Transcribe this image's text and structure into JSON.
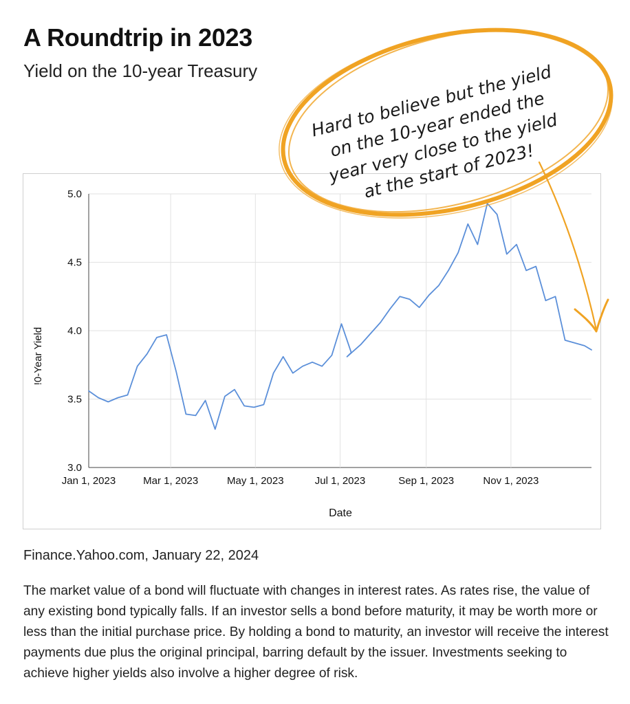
{
  "header": {
    "title": "A Roundtrip in 2023",
    "subtitle": "Yield on the 10-year Treasury"
  },
  "callout": {
    "lines": [
      "Hard to believe but the yield",
      "on the 10-year ended the",
      "year very close to the yield",
      "at the start of 2023!"
    ],
    "color": "#f0a323"
  },
  "source": "Finance.Yahoo.com, January 22, 2024",
  "disclaimer": "The market value of a bond will fluctuate with changes in interest rates. As rates rise, the value of any existing bond typically falls. If an investor sells a bond before maturity, it may be worth more or less than the initial purchase price. By holding a bond to maturity, an investor will receive the interest payments due plus the original principal, barring default by the issuer. Investments seeking to achieve higher yields also involve a higher degree of risk.",
  "chart_data": {
    "type": "line",
    "xlabel": "Date",
    "ylabel": "!0-Year Yield",
    "ylim": [
      3.0,
      5.0
    ],
    "yticks": [
      "3.0",
      "3.5",
      "4.0",
      "4.5",
      "5.0"
    ],
    "yticks_values": [
      3.0,
      3.5,
      4.0,
      4.5,
      5.0
    ],
    "xticks": [
      "Jan 1, 2023",
      "Mar 1, 2023",
      "May 1, 2023",
      "Jul 1, 2023",
      "Sep 1, 2023",
      "Nov 1, 2023"
    ],
    "xticks_dates": [
      "2023-01-01",
      "2023-03-01",
      "2023-05-01",
      "2023-07-01",
      "2023-09-01",
      "2023-11-01"
    ],
    "xlim": [
      "2023-01-01",
      "2023-12-29"
    ],
    "grid": true,
    "line_color": "#5b8fd9",
    "series": [
      {
        "x": [
          "2023-01-01",
          "2023-01-08",
          "2023-01-15",
          "2023-01-22",
          "2023-01-29",
          "2023-02-05",
          "2023-02-12",
          "2023-02-19",
          "2023-02-26",
          "2023-03-05",
          "2023-03-12",
          "2023-03-19",
          "2023-03-26",
          "2023-04-02",
          "2023-04-09",
          "2023-04-16",
          "2023-04-23",
          "2023-04-30",
          "2023-05-07",
          "2023-05-14",
          "2023-05-21",
          "2023-05-28",
          "2023-06-04",
          "2023-06-11",
          "2023-06-18",
          "2023-06-25",
          "2023-07-02",
          "2023-07-09",
          "2023-07-06",
          "2023-07-16",
          "2023-07-23",
          "2023-07-30",
          "2023-08-06",
          "2023-08-13",
          "2023-08-20",
          "2023-08-27",
          "2023-09-03",
          "2023-09-10",
          "2023-09-17",
          "2023-09-24",
          "2023-10-01",
          "2023-10-08",
          "2023-10-15",
          "2023-10-22",
          "2023-10-29",
          "2023-11-05",
          "2023-11-12",
          "2023-11-19",
          "2023-11-26",
          "2023-12-03",
          "2023-12-10",
          "2023-12-17",
          "2023-12-24",
          "2023-12-29"
        ],
        "y": [
          3.56,
          3.51,
          3.48,
          3.51,
          3.53,
          3.74,
          3.83,
          3.95,
          3.97,
          3.7,
          3.39,
          3.38,
          3.49,
          3.28,
          3.52,
          3.57,
          3.45,
          3.44,
          3.46,
          3.69,
          3.81,
          3.69,
          3.74,
          3.77,
          3.74,
          3.82,
          4.05,
          3.84,
          3.81,
          3.9,
          3.98,
          4.06,
          4.16,
          4.25,
          4.23,
          4.17,
          4.26,
          4.33,
          4.44,
          4.57,
          4.78,
          4.63,
          4.93,
          4.85,
          4.56,
          4.63,
          4.44,
          4.47,
          4.22,
          4.25,
          3.93,
          3.91,
          3.89,
          3.86
        ]
      }
    ]
  }
}
